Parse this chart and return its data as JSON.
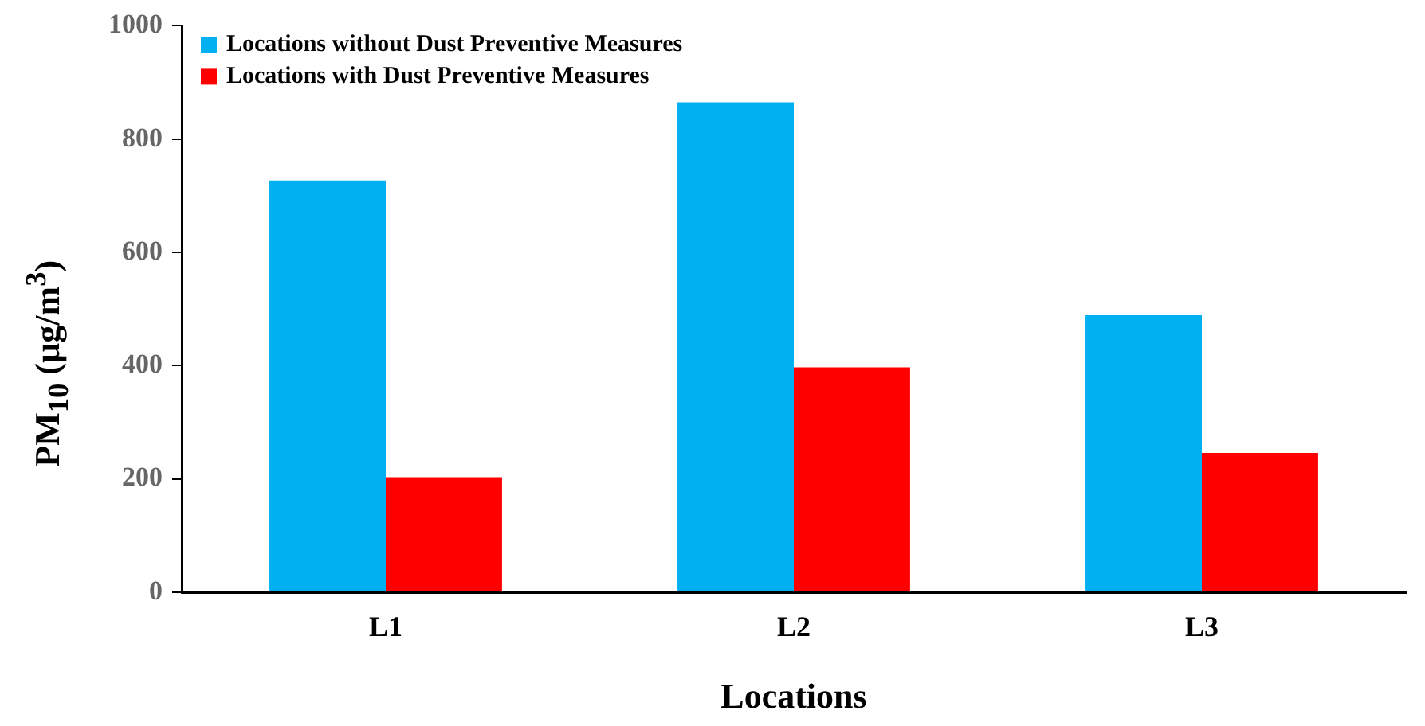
{
  "chart_data": {
    "type": "bar",
    "xlabel": "Locations",
    "ylabel": "PM$_{10}$ (µg/m$^{3}$)",
    "categories": [
      "L1",
      "L2",
      "L3"
    ],
    "series": [
      {
        "name": "Locations without Dust Preventive Measures",
        "color": "#00b0f0",
        "values": [
          727,
          865,
          489
        ]
      },
      {
        "name": "Locations with Dust Preventive Measures",
        "color": "#ff0000",
        "values": [
          203,
          397,
          246
        ]
      }
    ],
    "ylim": [
      0,
      1000
    ],
    "yticks": [
      0,
      200,
      400,
      600,
      800,
      1000
    ],
    "grid": false,
    "legend": "top left"
  }
}
